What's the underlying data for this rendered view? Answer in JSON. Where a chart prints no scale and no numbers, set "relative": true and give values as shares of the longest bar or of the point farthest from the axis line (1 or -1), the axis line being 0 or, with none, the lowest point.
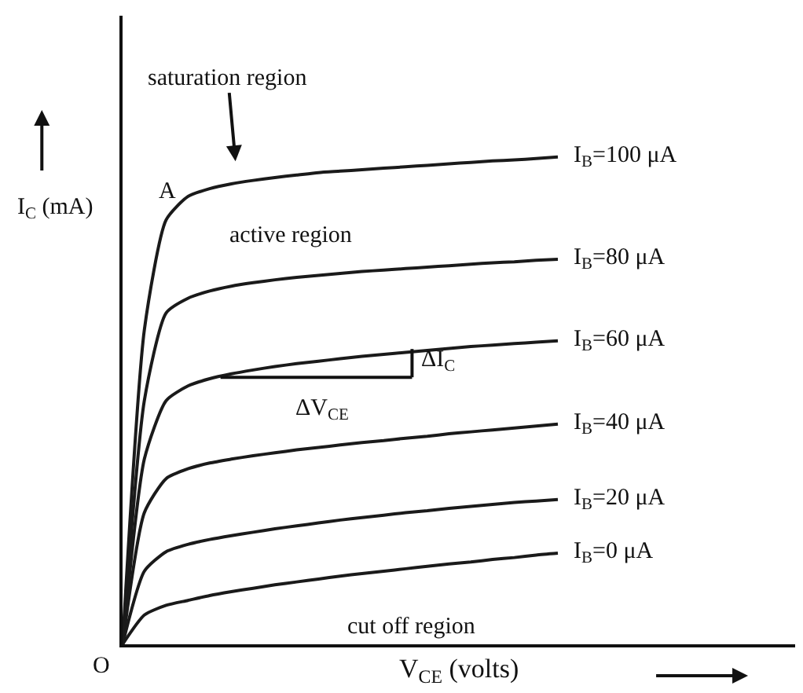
{
  "chart_data": {
    "type": "line",
    "relative": true,
    "xlabel": "V$_{CE}$ (volts)",
    "ylabel": "I$_{C}$ (mA)",
    "categories": [
      null,
      null,
      null,
      null,
      null,
      null,
      null,
      null,
      null,
      null,
      null,
      null,
      null,
      null,
      null,
      null,
      null,
      null,
      null,
      null,
      null
    ],
    "series": [
      {
        "name": "I$_{B}$=100 μA",
        "color": "#1a1a1a",
        "values": [
          0,
          0.645,
          0.871,
          0.919,
          0.935,
          0.945,
          0.952,
          0.958,
          0.963,
          0.968,
          0.971,
          0.974,
          0.977,
          0.98,
          0.983,
          0.986,
          0.989,
          0.992,
          0.994,
          0.997,
          1
        ]
      },
      {
        "name": "I$_{B}$=80 μA",
        "color": "#1a1a1a",
        "values": [
          0,
          0.5,
          0.68,
          0.71,
          0.725,
          0.735,
          0.742,
          0.748,
          0.753,
          0.757,
          0.761,
          0.765,
          0.768,
          0.771,
          0.774,
          0.777,
          0.78,
          0.783,
          0.785,
          0.788,
          0.79
        ]
      },
      {
        "name": "I$_{B}$=60 μA",
        "color": "#1a1a1a",
        "values": [
          0,
          0.38,
          0.5,
          0.53,
          0.545,
          0.555,
          0.563,
          0.57,
          0.576,
          0.581,
          0.586,
          0.591,
          0.595,
          0.599,
          0.603,
          0.607,
          0.611,
          0.614,
          0.617,
          0.62,
          0.623
        ]
      },
      {
        "name": "I$_{B}$=40 μA",
        "color": "#1a1a1a",
        "values": [
          0,
          0.27,
          0.34,
          0.36,
          0.372,
          0.38,
          0.387,
          0.393,
          0.399,
          0.404,
          0.409,
          0.414,
          0.418,
          0.423,
          0.427,
          0.432,
          0.436,
          0.44,
          0.444,
          0.448,
          0.452
        ]
      },
      {
        "name": "I$_{B}$=20 μA",
        "color": "#1a1a1a",
        "values": [
          0,
          0.15,
          0.19,
          0.205,
          0.215,
          0.223,
          0.23,
          0.237,
          0.243,
          0.249,
          0.255,
          0.26,
          0.265,
          0.27,
          0.274,
          0.279,
          0.283,
          0.287,
          0.291,
          0.294,
          0.297
        ]
      },
      {
        "name": "I$_{B}$=0 μA",
        "color": "#1a1a1a",
        "values": [
          0,
          0.06,
          0.08,
          0.09,
          0.1,
          0.108,
          0.115,
          0.122,
          0.128,
          0.134,
          0.14,
          0.145,
          0.15,
          0.155,
          0.16,
          0.165,
          0.169,
          0.174,
          0.178,
          0.183,
          0.187
        ]
      }
    ],
    "annotations": [
      "saturation region",
      "A",
      "active region",
      "ΔI$_{C}$",
      "ΔV$_{CE}$",
      "cut off region",
      "O"
    ],
    "legend": false,
    "marker": "none",
    "line_style": "solid"
  }
}
